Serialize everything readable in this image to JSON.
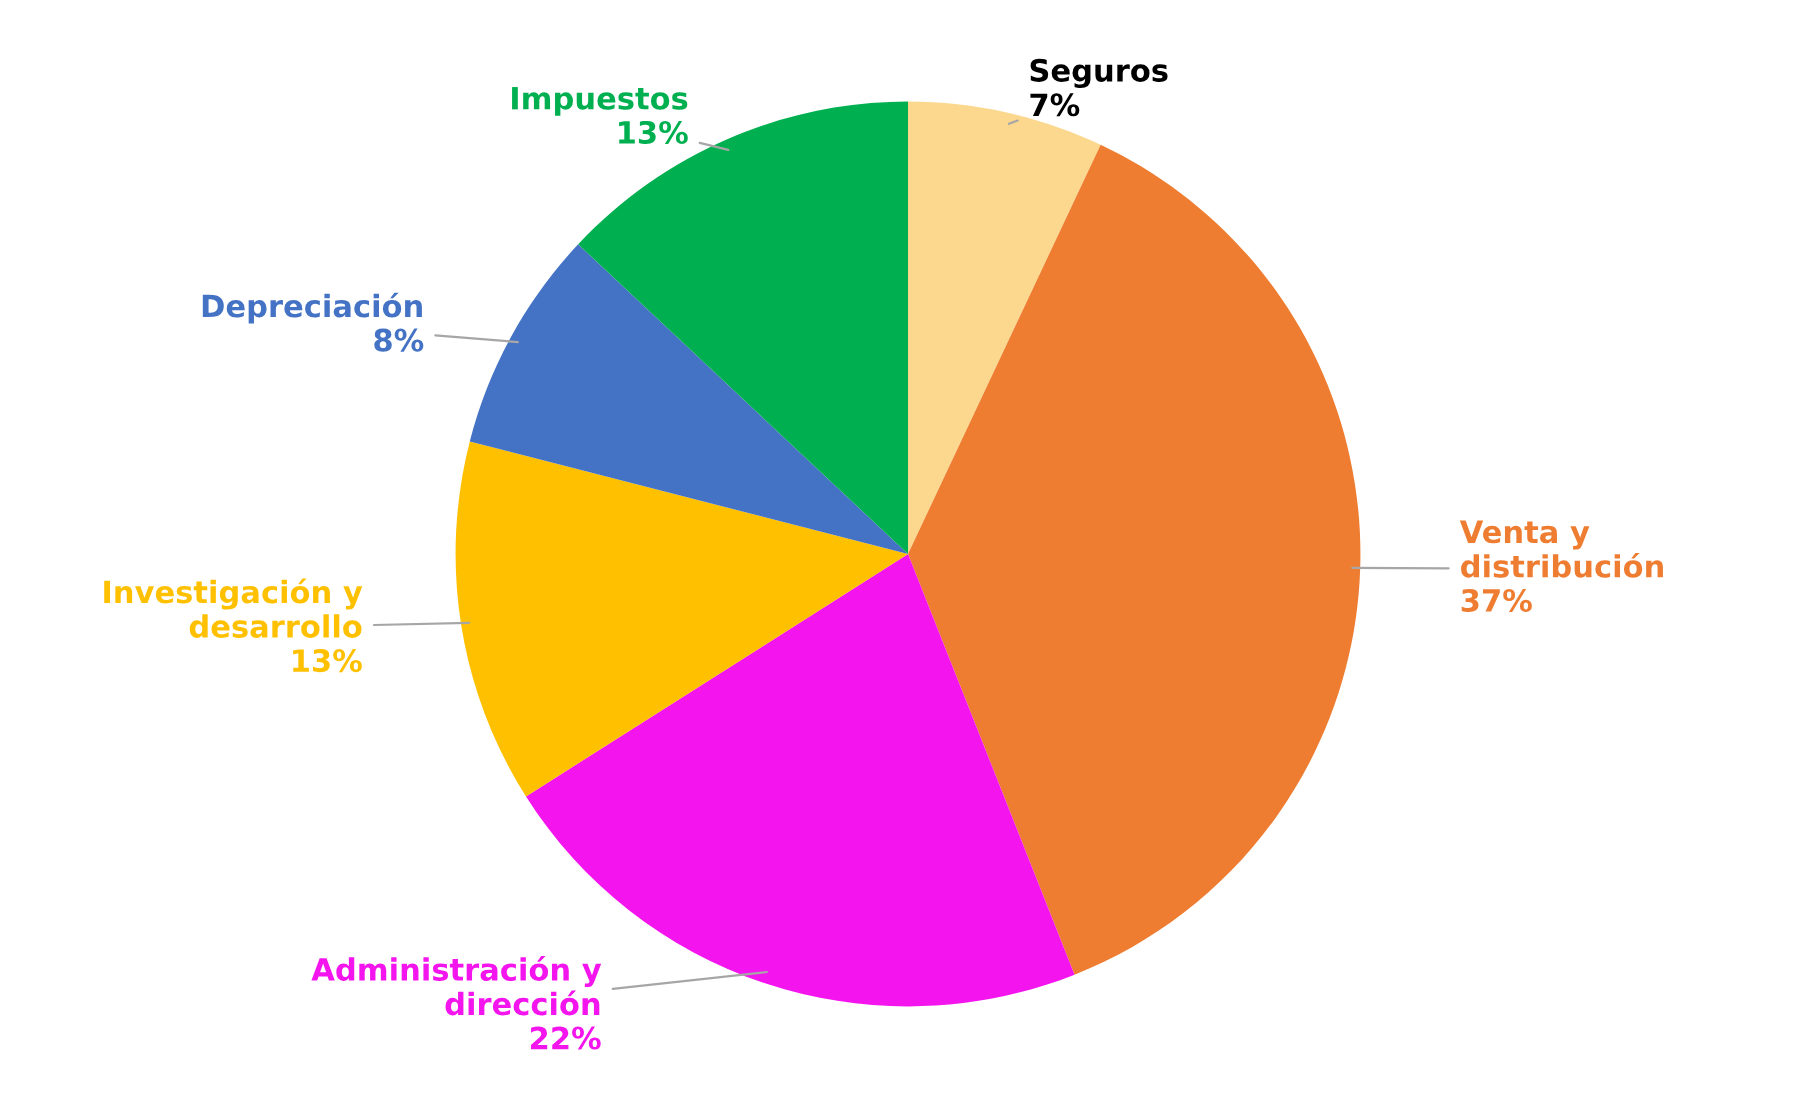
{
  "chart_data": {
    "type": "pie",
    "categories": [
      "Seguros",
      "Venta y\ndistribución",
      "Administración y\ndirección",
      "Investigación y\ndesarrollo",
      "Depreciación",
      "Impuestos"
    ],
    "values": [
      7,
      37,
      22,
      13,
      8,
      13
    ],
    "value_labels": [
      "7%",
      "37%",
      "22%",
      "13%",
      "8%",
      "13%"
    ],
    "colors": [
      "#fbd88e",
      "#ee7d31",
      "#f414ee",
      "#ffc000",
      "#4472c4",
      "#00b050"
    ]
  }
}
